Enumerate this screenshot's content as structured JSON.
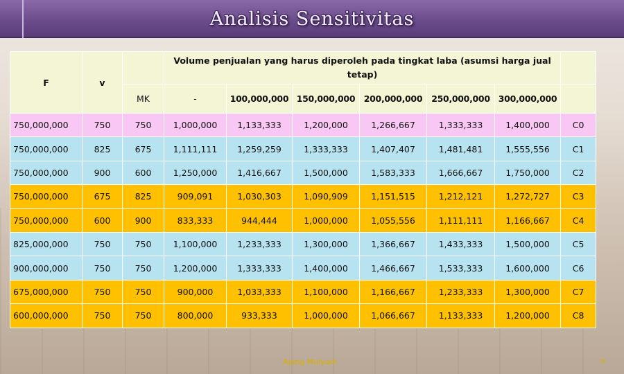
{
  "title": "Analisis Sensitivitas",
  "header": {
    "col_f": "F",
    "col_v": "v",
    "group_title": "Volume penjualan yang harus diperoleh pada tingkat laba (asumsi harga jual tetap)",
    "col_mk": "MK",
    "col_dash": "-",
    "profit_levels": [
      "100,000,000",
      "150,000,000",
      "200,000,000",
      "250,000,000",
      "300,000,000"
    ]
  },
  "rows": [
    {
      "style": "pink",
      "cells": [
        "750,000,000",
        "750",
        "750",
        "1,000,000",
        "1,133,333",
        "1,200,000",
        "1,266,667",
        "1,333,333",
        "1,400,000",
        "C0"
      ]
    },
    {
      "style": "cyan",
      "cells": [
        "750,000,000",
        "825",
        "675",
        "1,111,111",
        "1,259,259",
        "1,333,333",
        "1,407,407",
        "1,481,481",
        "1,555,556",
        "C1"
      ]
    },
    {
      "style": "cyan",
      "cells": [
        "750,000,000",
        "900",
        "600",
        "1,250,000",
        "1,416,667",
        "1,500,000",
        "1,583,333",
        "1,666,667",
        "1,750,000",
        "C2"
      ]
    },
    {
      "style": "orange",
      "cells": [
        "750,000,000",
        "675",
        "825",
        "909,091",
        "1,030,303",
        "1,090,909",
        "1,151,515",
        "1,212,121",
        "1,272,727",
        "C3"
      ]
    },
    {
      "style": "orange",
      "cells": [
        "750,000,000",
        "600",
        "900",
        "833,333",
        "944,444",
        "1,000,000",
        "1,055,556",
        "1,111,111",
        "1,166,667",
        "C4"
      ]
    },
    {
      "style": "cyan",
      "cells": [
        "825,000,000",
        "750",
        "750",
        "1,100,000",
        "1,233,333",
        "1,300,000",
        "1,366,667",
        "1,433,333",
        "1,500,000",
        "C5"
      ]
    },
    {
      "style": "cyan",
      "cells": [
        "900,000,000",
        "750",
        "750",
        "1,200,000",
        "1,333,333",
        "1,400,000",
        "1,466,667",
        "1,533,333",
        "1,600,000",
        "C6"
      ]
    },
    {
      "style": "orange",
      "cells": [
        "675,000,000",
        "750",
        "750",
        "900,000",
        "1,033,333",
        "1,100,000",
        "1,166,667",
        "1,233,333",
        "1,300,000",
        "C7"
      ]
    },
    {
      "style": "orange",
      "cells": [
        "600,000,000",
        "750",
        "750",
        "800,000",
        "933,333",
        "1,000,000",
        "1,066,667",
        "1,133,333",
        "1,200,000",
        "C8"
      ]
    }
  ],
  "footer": {
    "author": "Ajang Mulyadi",
    "page": "9"
  }
}
